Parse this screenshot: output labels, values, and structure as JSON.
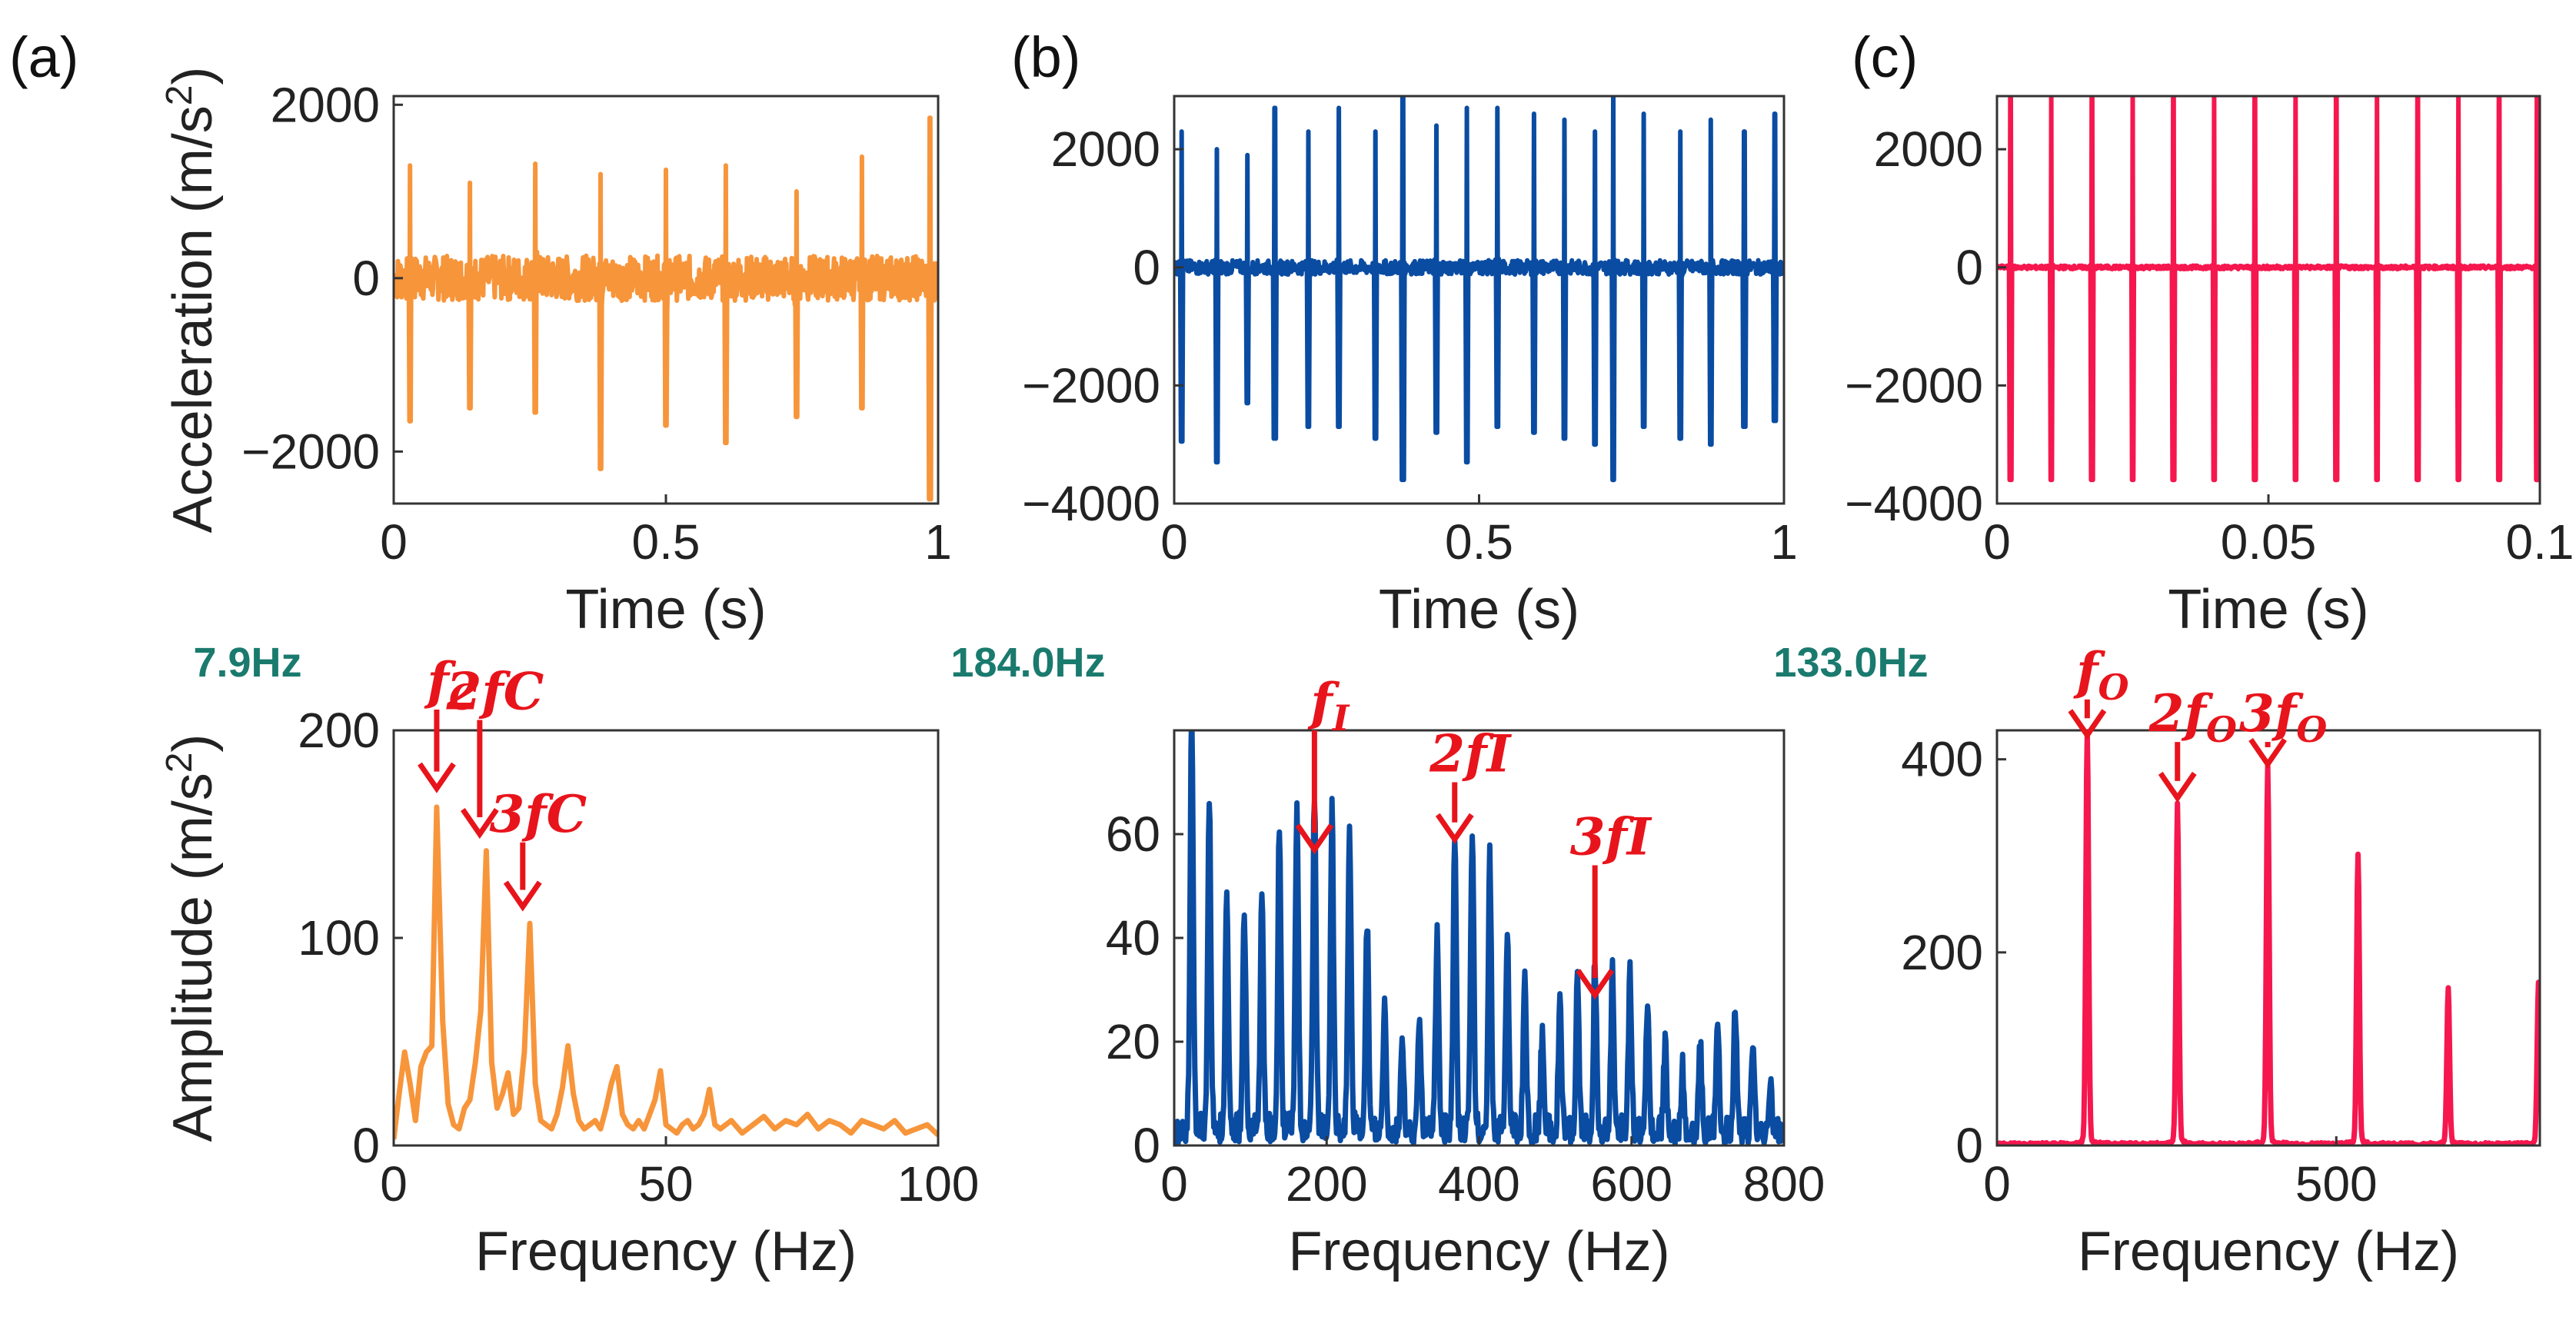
{
  "panel_labels": [
    "(a)",
    "(b)",
    "(c)"
  ],
  "colors": {
    "a": "#f7953b",
    "b": "#0a4ca2",
    "c": "#f5174e",
    "annotation": "#e8141c",
    "freq_label": "#1a7a6e"
  },
  "chart_data": [
    {
      "id": "a_time",
      "type": "line",
      "panel": "(a)",
      "xlabel": "Time (s)",
      "ylabel": "Acceleration (m/s²)",
      "xlim": [
        0,
        1
      ],
      "ylim": [
        -2600,
        2100
      ],
      "xticks": [
        0,
        0.5,
        1
      ],
      "xticklabels": [
        "0",
        "0.5",
        "1"
      ],
      "yticks": [
        2000,
        0,
        -2000
      ],
      "yticklabels": [
        "2000",
        "0",
        "−2000"
      ],
      "series": [
        {
          "color": "#f7953b",
          "impulses": [
            [
              0.03,
              1300,
              -1650
            ],
            [
              0.14,
              1100,
              -1500
            ],
            [
              0.26,
              1320,
              -1550
            ],
            [
              0.38,
              1200,
              -2200
            ],
            [
              0.5,
              1250,
              -1700
            ],
            [
              0.61,
              1300,
              -1900
            ],
            [
              0.74,
              1000,
              -1600
            ],
            [
              0.86,
              1400,
              -1500
            ],
            [
              0.985,
              1850,
              -2550
            ]
          ],
          "noise": 260
        }
      ]
    },
    {
      "id": "b_time",
      "type": "line",
      "panel": "(b)",
      "xlabel": "Time (s)",
      "ylabel": "",
      "xlim": [
        0,
        1
      ],
      "ylim": [
        -4000,
        2900
      ],
      "xticks": [
        0,
        0.5,
        1
      ],
      "xticklabels": [
        "0",
        "0.5",
        "1"
      ],
      "yticks": [
        2000,
        0,
        -2000,
        -4000
      ],
      "yticklabels": [
        "2000",
        "0",
        "−2000",
        "−4000"
      ],
      "series": [
        {
          "color": "#0a4ca2",
          "impulses": [
            [
              0.012,
              2300,
              -2950
            ],
            [
              0.07,
              2000,
              -3300
            ],
            [
              0.12,
              1900,
              -2300
            ],
            [
              0.165,
              2700,
              -2900
            ],
            [
              0.22,
              2300,
              -2700
            ],
            [
              0.27,
              2700,
              -2700
            ],
            [
              0.33,
              2300,
              -2900
            ],
            [
              0.375,
              2900,
              -3600
            ],
            [
              0.43,
              2400,
              -2800
            ],
            [
              0.48,
              2700,
              -3300
            ],
            [
              0.53,
              2700,
              -2700
            ],
            [
              0.59,
              2600,
              -2800
            ],
            [
              0.64,
              2500,
              -2900
            ],
            [
              0.69,
              2300,
              -3000
            ],
            [
              0.72,
              3000,
              -3600
            ],
            [
              0.77,
              2600,
              -2700
            ],
            [
              0.83,
              2300,
              -2900
            ],
            [
              0.88,
              2500,
              -3000
            ],
            [
              0.935,
              2300,
              -2700
            ],
            [
              0.985,
              2600,
              -2600
            ]
          ],
          "noise": 120
        }
      ]
    },
    {
      "id": "c_time",
      "type": "line",
      "panel": "(c)",
      "xlabel": "Time (s)",
      "ylabel": "",
      "xlim": [
        0,
        0.1
      ],
      "ylim": [
        -4000,
        2900
      ],
      "xticks": [
        0,
        0.05,
        0.1
      ],
      "xticklabels": [
        "0",
        "0.05",
        "0.1"
      ],
      "yticks": [
        2000,
        0,
        -2000,
        -4000
      ],
      "yticklabels": [
        "2000",
        "0",
        "−2000",
        "−4000"
      ],
      "series": [
        {
          "color": "#f5174e",
          "impulses": [
            [
              0.0025,
              2900,
              -3600
            ],
            [
              0.01,
              2900,
              -3600
            ],
            [
              0.0175,
              2900,
              -3600
            ],
            [
              0.025,
              2900,
              -3600
            ],
            [
              0.0325,
              2900,
              -3600
            ],
            [
              0.04,
              2900,
              -3600
            ],
            [
              0.0475,
              2900,
              -3600
            ],
            [
              0.055,
              2900,
              -3600
            ],
            [
              0.0625,
              2900,
              -3600
            ],
            [
              0.07,
              2900,
              -3600
            ],
            [
              0.0775,
              2900,
              -3600
            ],
            [
              0.085,
              2900,
              -3600
            ],
            [
              0.0925,
              2900,
              -3600
            ],
            [
              0.0995,
              2900,
              -3600
            ]
          ],
          "noise": 30
        }
      ]
    },
    {
      "id": "a_spec",
      "type": "line",
      "panel": "(a)",
      "xlabel": "Frequency (Hz)",
      "ylabel": "Amplitude (m/s²)",
      "xlim": [
        0,
        100
      ],
      "ylim": [
        0,
        200
      ],
      "xticks": [
        0,
        50,
        100
      ],
      "xticklabels": [
        "0",
        "50",
        "100"
      ],
      "yticks": [
        200,
        100,
        0
      ],
      "yticklabels": [
        "200",
        "100",
        "0"
      ],
      "freq_label": "7.9Hz",
      "series": [
        {
          "color": "#f7953b",
          "x": [
            0,
            1,
            2,
            3,
            4,
            5,
            6,
            7,
            7.9,
            9,
            10,
            11,
            12,
            13,
            14,
            15,
            16,
            17,
            18,
            19,
            20,
            21,
            22,
            23,
            24,
            25,
            26,
            27,
            28,
            29,
            30,
            31,
            32,
            33,
            34,
            35,
            36,
            37,
            38,
            39,
            40,
            41,
            42,
            43,
            44,
            45,
            46,
            47,
            48,
            49,
            50,
            51,
            52,
            53,
            54,
            55,
            56,
            57,
            58,
            59,
            60,
            62,
            64,
            66,
            68,
            70,
            72,
            74,
            76,
            78,
            80,
            82,
            84,
            86,
            88,
            90,
            92,
            94,
            96,
            98,
            100
          ],
          "y": [
            3,
            25,
            45,
            30,
            12,
            38,
            45,
            48,
            163,
            60,
            20,
            10,
            8,
            18,
            22,
            40,
            65,
            142,
            40,
            18,
            25,
            35,
            15,
            18,
            45,
            107,
            30,
            12,
            10,
            8,
            15,
            28,
            48,
            25,
            12,
            8,
            10,
            12,
            8,
            18,
            30,
            38,
            15,
            10,
            8,
            12,
            8,
            15,
            22,
            36,
            10,
            8,
            6,
            10,
            12,
            8,
            10,
            15,
            27,
            10,
            8,
            12,
            6,
            10,
            14,
            8,
            12,
            10,
            15,
            8,
            12,
            10,
            6,
            12,
            10,
            8,
            12,
            6,
            8,
            10,
            5
          ]
        }
      ],
      "annotations": [
        {
          "label": "f_C",
          "x": 7.9,
          "arrow_top": 210,
          "arrow_tip": 172
        },
        {
          "label": "2fC",
          "x": 15.8,
          "arrow_top": 205,
          "arrow_tip": 150
        },
        {
          "label": "3fC",
          "x": 23.7,
          "arrow_top": 146,
          "arrow_tip": 115
        }
      ]
    },
    {
      "id": "b_spec",
      "type": "line",
      "panel": "(b)",
      "xlabel": "Frequency (Hz)",
      "ylabel": "",
      "xlim": [
        0,
        800
      ],
      "ylim": [
        0,
        80
      ],
      "xticks": [
        0,
        200,
        400,
        600,
        800
      ],
      "xticklabels": [
        "0",
        "200",
        "400",
        "600",
        "800"
      ],
      "yticks": [
        60,
        40,
        20,
        0
      ],
      "yticklabels": [
        "60",
        "40",
        "20",
        "0"
      ],
      "freq_label": "184.0Hz",
      "series": [
        {
          "color": "#0a4ca2",
          "peaks": [
            [
              23,
              80
            ],
            [
              46,
              64
            ],
            [
              69,
              45
            ],
            [
              92,
              42
            ],
            [
              115,
              45
            ],
            [
              138,
              58
            ],
            [
              161,
              62
            ],
            [
              184,
              63
            ],
            [
              207,
              60
            ],
            [
              230,
              58
            ],
            [
              253,
              40
            ],
            [
              276,
              25
            ],
            [
              299,
              18
            ],
            [
              322,
              22
            ],
            [
              345,
              38
            ],
            [
              368,
              57
            ],
            [
              391,
              58
            ],
            [
              414,
              52
            ],
            [
              437,
              38
            ],
            [
              460,
              30
            ],
            [
              483,
              20
            ],
            [
              506,
              25
            ],
            [
              529,
              30
            ],
            [
              552,
              32
            ],
            [
              575,
              31
            ],
            [
              598,
              30
            ],
            [
              621,
              26
            ],
            [
              644,
              17
            ],
            [
              667,
              12
            ],
            [
              690,
              16
            ],
            [
              713,
              22
            ],
            [
              736,
              24
            ],
            [
              759,
              18
            ],
            [
              782,
              10
            ]
          ],
          "noise": 8
        }
      ],
      "annotations": [
        {
          "label": "f_I",
          "x": 184,
          "arrow_top": 80,
          "arrow_tip": 57
        },
        {
          "label": "2fI",
          "x": 368,
          "arrow_top": 70,
          "arrow_tip": 59
        },
        {
          "label": "3fI",
          "x": 552,
          "arrow_top": 54,
          "arrow_tip": 29
        }
      ]
    },
    {
      "id": "c_spec",
      "type": "line",
      "panel": "(c)",
      "xlabel": "Frequency (Hz)",
      "ylabel": "",
      "xlim": [
        0,
        800
      ],
      "ylim": [
        0,
        430
      ],
      "xticks": [
        0,
        500
      ],
      "xticklabels": [
        "0",
        "500"
      ],
      "yticks": [
        400,
        200,
        0
      ],
      "yticklabels": [
        "400",
        "200",
        "0"
      ],
      "freq_label": "133.0Hz",
      "series": [
        {
          "color": "#f5174e",
          "peaks": [
            [
              133,
              420
            ],
            [
              266,
              345
            ],
            [
              399,
              385
            ],
            [
              532,
              295
            ],
            [
              665,
              158
            ],
            [
              798,
              165
            ]
          ],
          "noise": 4
        }
      ],
      "annotations": [
        {
          "label": "f_O",
          "x": 133,
          "arrow_top": 462,
          "arrow_tip": 425
        },
        {
          "label": "2f_O",
          "x": 266,
          "arrow_top": 418,
          "arrow_tip": 360
        },
        {
          "label": "3f_O",
          "x": 399,
          "arrow_top": 418,
          "arrow_tip": 395
        }
      ]
    }
  ]
}
